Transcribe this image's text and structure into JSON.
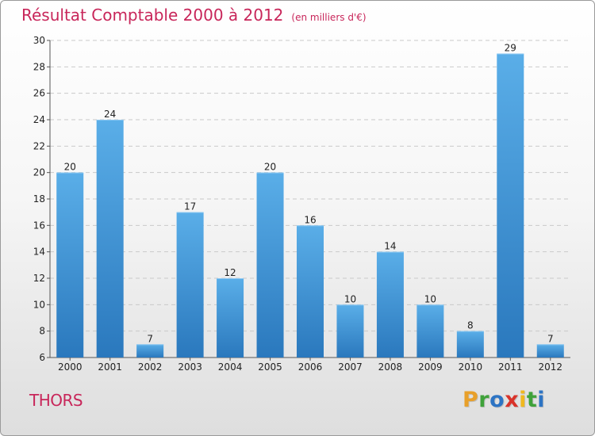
{
  "title": "Résultat Comptable 2000 à 2012",
  "subtitle": "(en milliers d'€)",
  "commune": "THORS",
  "logo": {
    "letters": [
      "P",
      "r",
      "o",
      "x",
      "i",
      "t",
      "i"
    ]
  },
  "colors": {
    "title": "#c8265a",
    "bar_top": "#5aaee8",
    "bar_bottom": "#2a78bd",
    "logo_letters": [
      "#e8a02a",
      "#3fa23a",
      "#2d74c4",
      "#d9332a",
      "#f0b81f",
      "#3fa23a",
      "#2d74c4"
    ]
  },
  "chart_data": {
    "type": "bar",
    "title": "Résultat Comptable 2000 à 2012",
    "xlabel": "",
    "ylabel": "",
    "categories": [
      "2000",
      "2001",
      "2002",
      "2003",
      "2004",
      "2005",
      "2006",
      "2007",
      "2008",
      "2009",
      "2010",
      "2011",
      "2012"
    ],
    "values": [
      20,
      24,
      7,
      17,
      12,
      20,
      16,
      10,
      14,
      10,
      8,
      29,
      7
    ],
    "ylim": [
      6,
      30
    ],
    "yticks": [
      6,
      8,
      10,
      12,
      14,
      16,
      18,
      20,
      22,
      24,
      26,
      28,
      30
    ],
    "grid": true
  }
}
